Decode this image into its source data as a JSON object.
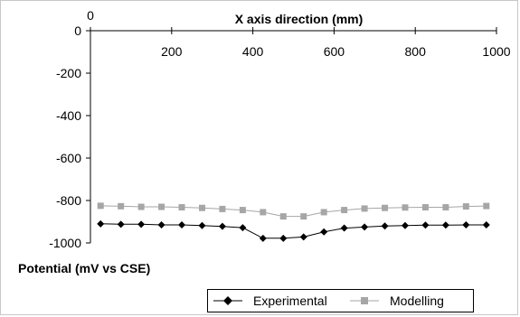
{
  "chart_data": {
    "type": "line",
    "title": "",
    "xlabel": "X axis direction (mm)",
    "ylabel": "Potential (mV vs CSE)",
    "xlim": [
      0,
      1000
    ],
    "ylim": [
      -1000,
      0
    ],
    "x_ticks": [
      0,
      200,
      400,
      600,
      800,
      1000
    ],
    "y_ticks": [
      0,
      -200,
      -400,
      -600,
      -800,
      -1000
    ],
    "grid": false,
    "legend_position": "bottom",
    "series": [
      {
        "name": "Experimental",
        "color": "#000000",
        "marker": "diamond",
        "x": [
          25,
          75,
          125,
          175,
          225,
          275,
          325,
          375,
          425,
          475,
          525,
          575,
          625,
          675,
          725,
          775,
          825,
          875,
          925,
          975
        ],
        "y": [
          -910,
          -912,
          -912,
          -915,
          -915,
          -918,
          -922,
          -928,
          -978,
          -978,
          -972,
          -948,
          -930,
          -925,
          -920,
          -918,
          -916,
          -916,
          -915,
          -915
        ]
      },
      {
        "name": "Modelling",
        "color": "#a6a6a6",
        "marker": "square",
        "x": [
          25,
          75,
          125,
          175,
          225,
          275,
          325,
          375,
          425,
          475,
          525,
          575,
          625,
          675,
          725,
          775,
          825,
          875,
          925,
          975
        ],
        "y": [
          -825,
          -827,
          -830,
          -830,
          -832,
          -835,
          -840,
          -845,
          -855,
          -875,
          -875,
          -855,
          -845,
          -838,
          -835,
          -833,
          -832,
          -832,
          -828,
          -826
        ]
      }
    ]
  }
}
